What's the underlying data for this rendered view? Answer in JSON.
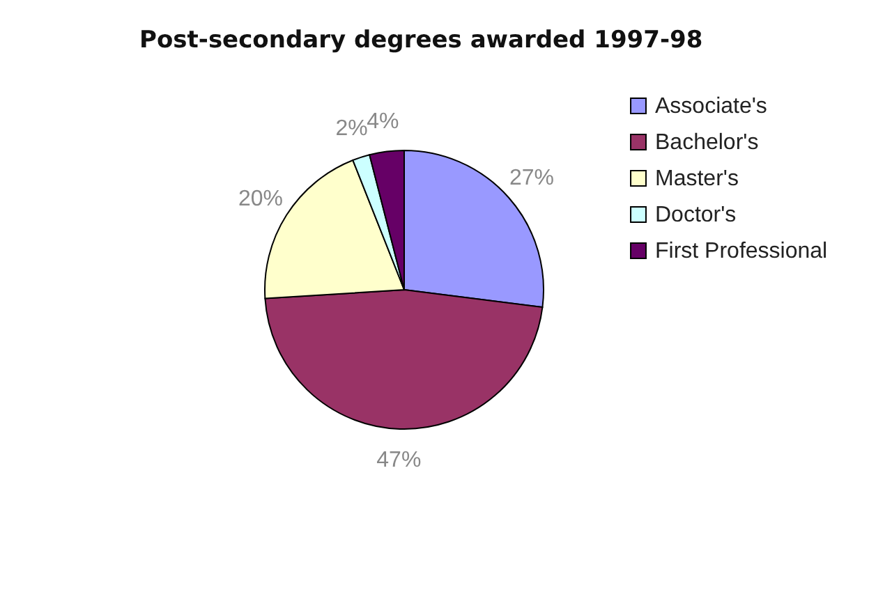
{
  "chart_data": {
    "type": "pie",
    "title": "Post-secondary degrees awarded 1997-98",
    "categories": [
      "Associate's",
      "Bachelor's",
      "Master's",
      "Doctor's",
      "First Professional"
    ],
    "values": [
      27,
      47,
      20,
      2,
      4
    ],
    "colors": [
      "#9999ff",
      "#993366",
      "#ffffcc",
      "#ccffff",
      "#660066"
    ],
    "value_labels": [
      "27%",
      "47%",
      "20%",
      "2%",
      "4%"
    ],
    "legend": "right"
  }
}
